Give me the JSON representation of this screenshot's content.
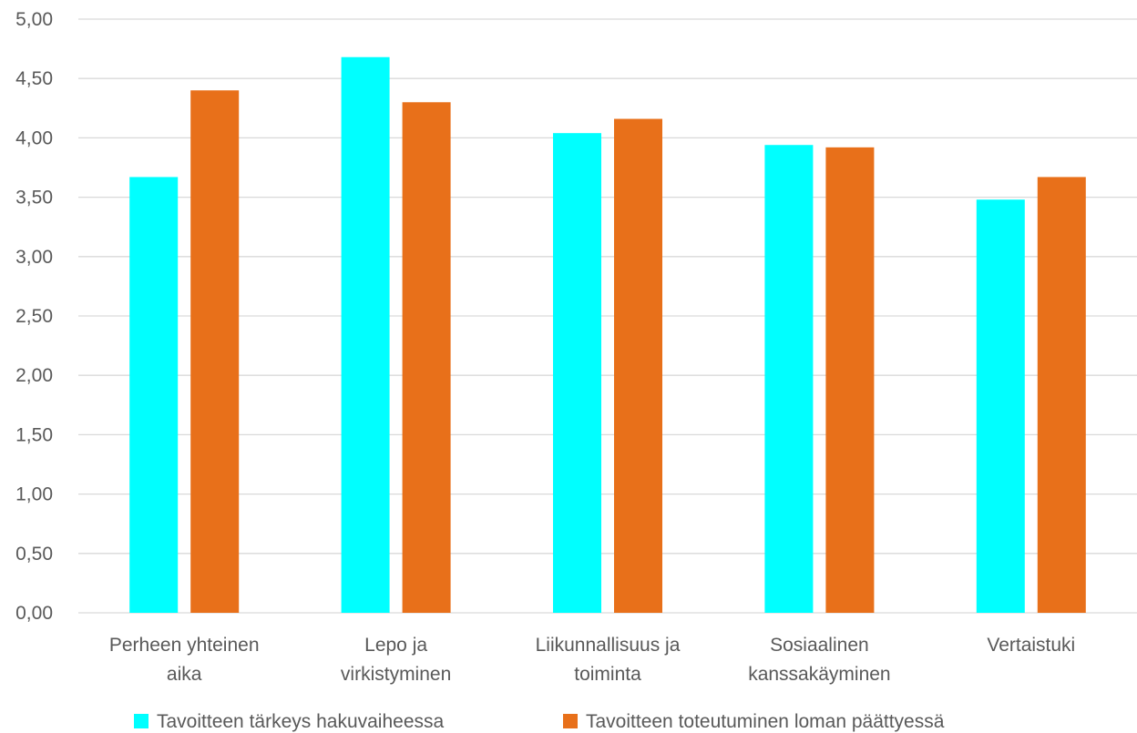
{
  "chart_data": {
    "type": "bar",
    "categories": [
      [
        "Perheen yhteinen",
        "aika"
      ],
      [
        "Lepo ja",
        "virkistyminen"
      ],
      [
        "Liikunnallisuus ja",
        "toiminta"
      ],
      [
        "Sosiaalinen",
        "kanssakäyminen"
      ],
      [
        "Vertaistuki"
      ]
    ],
    "series": [
      {
        "name": "Tavoitteen tärkeys hakuvaiheessa",
        "color": "#00ffff",
        "values": [
          3.67,
          4.68,
          4.04,
          3.94,
          3.48
        ]
      },
      {
        "name": "Tavoitteen toteutuminen loman päättyessä",
        "color": "#e8701a",
        "values": [
          4.4,
          4.3,
          4.16,
          3.92,
          3.67
        ]
      }
    ],
    "ylim": [
      0,
      5
    ],
    "yticks": [
      "0,00",
      "0,50",
      "1,00",
      "1,50",
      "2,00",
      "2,50",
      "3,00",
      "3,50",
      "4,00",
      "4,50",
      "5,00"
    ],
    "ytick_values": [
      0,
      0.5,
      1,
      1.5,
      2,
      2.5,
      3,
      3.5,
      4,
      4.5,
      5
    ],
    "grid": true,
    "legend_position": "bottom",
    "title": "",
    "xlabel": "",
    "ylabel": ""
  }
}
